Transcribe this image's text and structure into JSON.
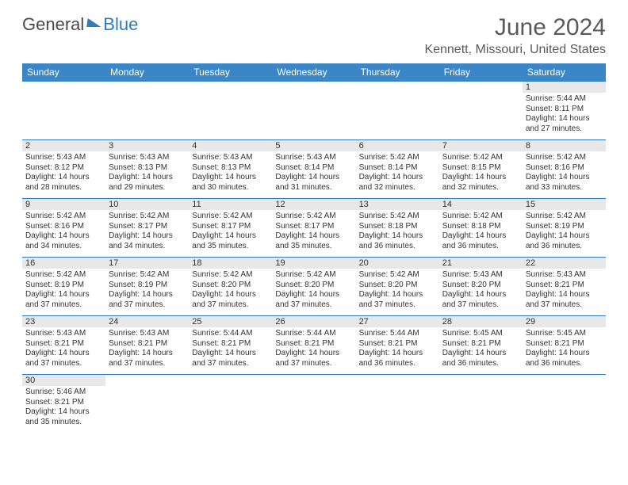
{
  "logo": {
    "text1": "General",
    "text2": "Blue"
  },
  "title": "June 2024",
  "location": "Kennett, Missouri, United States",
  "colors": {
    "header_bg": "#3b86c6",
    "header_text": "#ffffff",
    "border": "#2f7bbf",
    "daynum_bg": "#e8e8e8",
    "body_text": "#333333",
    "title_text": "#5a5a5a"
  },
  "weekdays": [
    "Sunday",
    "Monday",
    "Tuesday",
    "Wednesday",
    "Thursday",
    "Friday",
    "Saturday"
  ],
  "weeks": [
    [
      null,
      null,
      null,
      null,
      null,
      null,
      {
        "n": "1",
        "sr": "Sunrise: 5:44 AM",
        "ss": "Sunset: 8:11 PM",
        "dl": "Daylight: 14 hours and 27 minutes."
      }
    ],
    [
      {
        "n": "2",
        "sr": "Sunrise: 5:43 AM",
        "ss": "Sunset: 8:12 PM",
        "dl": "Daylight: 14 hours and 28 minutes."
      },
      {
        "n": "3",
        "sr": "Sunrise: 5:43 AM",
        "ss": "Sunset: 8:13 PM",
        "dl": "Daylight: 14 hours and 29 minutes."
      },
      {
        "n": "4",
        "sr": "Sunrise: 5:43 AM",
        "ss": "Sunset: 8:13 PM",
        "dl": "Daylight: 14 hours and 30 minutes."
      },
      {
        "n": "5",
        "sr": "Sunrise: 5:43 AM",
        "ss": "Sunset: 8:14 PM",
        "dl": "Daylight: 14 hours and 31 minutes."
      },
      {
        "n": "6",
        "sr": "Sunrise: 5:42 AM",
        "ss": "Sunset: 8:14 PM",
        "dl": "Daylight: 14 hours and 32 minutes."
      },
      {
        "n": "7",
        "sr": "Sunrise: 5:42 AM",
        "ss": "Sunset: 8:15 PM",
        "dl": "Daylight: 14 hours and 32 minutes."
      },
      {
        "n": "8",
        "sr": "Sunrise: 5:42 AM",
        "ss": "Sunset: 8:16 PM",
        "dl": "Daylight: 14 hours and 33 minutes."
      }
    ],
    [
      {
        "n": "9",
        "sr": "Sunrise: 5:42 AM",
        "ss": "Sunset: 8:16 PM",
        "dl": "Daylight: 14 hours and 34 minutes."
      },
      {
        "n": "10",
        "sr": "Sunrise: 5:42 AM",
        "ss": "Sunset: 8:17 PM",
        "dl": "Daylight: 14 hours and 34 minutes."
      },
      {
        "n": "11",
        "sr": "Sunrise: 5:42 AM",
        "ss": "Sunset: 8:17 PM",
        "dl": "Daylight: 14 hours and 35 minutes."
      },
      {
        "n": "12",
        "sr": "Sunrise: 5:42 AM",
        "ss": "Sunset: 8:17 PM",
        "dl": "Daylight: 14 hours and 35 minutes."
      },
      {
        "n": "13",
        "sr": "Sunrise: 5:42 AM",
        "ss": "Sunset: 8:18 PM",
        "dl": "Daylight: 14 hours and 36 minutes."
      },
      {
        "n": "14",
        "sr": "Sunrise: 5:42 AM",
        "ss": "Sunset: 8:18 PM",
        "dl": "Daylight: 14 hours and 36 minutes."
      },
      {
        "n": "15",
        "sr": "Sunrise: 5:42 AM",
        "ss": "Sunset: 8:19 PM",
        "dl": "Daylight: 14 hours and 36 minutes."
      }
    ],
    [
      {
        "n": "16",
        "sr": "Sunrise: 5:42 AM",
        "ss": "Sunset: 8:19 PM",
        "dl": "Daylight: 14 hours and 37 minutes."
      },
      {
        "n": "17",
        "sr": "Sunrise: 5:42 AM",
        "ss": "Sunset: 8:19 PM",
        "dl": "Daylight: 14 hours and 37 minutes."
      },
      {
        "n": "18",
        "sr": "Sunrise: 5:42 AM",
        "ss": "Sunset: 8:20 PM",
        "dl": "Daylight: 14 hours and 37 minutes."
      },
      {
        "n": "19",
        "sr": "Sunrise: 5:42 AM",
        "ss": "Sunset: 8:20 PM",
        "dl": "Daylight: 14 hours and 37 minutes."
      },
      {
        "n": "20",
        "sr": "Sunrise: 5:42 AM",
        "ss": "Sunset: 8:20 PM",
        "dl": "Daylight: 14 hours and 37 minutes."
      },
      {
        "n": "21",
        "sr": "Sunrise: 5:43 AM",
        "ss": "Sunset: 8:20 PM",
        "dl": "Daylight: 14 hours and 37 minutes."
      },
      {
        "n": "22",
        "sr": "Sunrise: 5:43 AM",
        "ss": "Sunset: 8:21 PM",
        "dl": "Daylight: 14 hours and 37 minutes."
      }
    ],
    [
      {
        "n": "23",
        "sr": "Sunrise: 5:43 AM",
        "ss": "Sunset: 8:21 PM",
        "dl": "Daylight: 14 hours and 37 minutes."
      },
      {
        "n": "24",
        "sr": "Sunrise: 5:43 AM",
        "ss": "Sunset: 8:21 PM",
        "dl": "Daylight: 14 hours and 37 minutes."
      },
      {
        "n": "25",
        "sr": "Sunrise: 5:44 AM",
        "ss": "Sunset: 8:21 PM",
        "dl": "Daylight: 14 hours and 37 minutes."
      },
      {
        "n": "26",
        "sr": "Sunrise: 5:44 AM",
        "ss": "Sunset: 8:21 PM",
        "dl": "Daylight: 14 hours and 37 minutes."
      },
      {
        "n": "27",
        "sr": "Sunrise: 5:44 AM",
        "ss": "Sunset: 8:21 PM",
        "dl": "Daylight: 14 hours and 36 minutes."
      },
      {
        "n": "28",
        "sr": "Sunrise: 5:45 AM",
        "ss": "Sunset: 8:21 PM",
        "dl": "Daylight: 14 hours and 36 minutes."
      },
      {
        "n": "29",
        "sr": "Sunrise: 5:45 AM",
        "ss": "Sunset: 8:21 PM",
        "dl": "Daylight: 14 hours and 36 minutes."
      }
    ],
    [
      {
        "n": "30",
        "sr": "Sunrise: 5:46 AM",
        "ss": "Sunset: 8:21 PM",
        "dl": "Daylight: 14 hours and 35 minutes."
      },
      null,
      null,
      null,
      null,
      null,
      null
    ]
  ]
}
